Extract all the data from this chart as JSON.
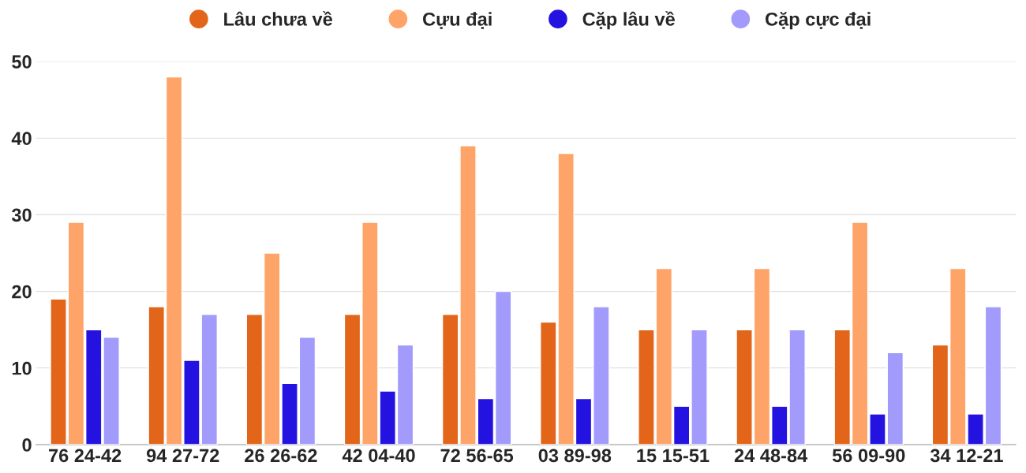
{
  "chart_data": {
    "type": "bar",
    "categories": [
      "76 24-42",
      "94 27-72",
      "26 26-62",
      "42 04-40",
      "72 56-65",
      "03 89-98",
      "15 15-51",
      "24 48-84",
      "56 09-90",
      "34 12-21"
    ],
    "series": [
      {
        "name": "Lâu chưa về",
        "color": "#e2651a",
        "values": [
          19,
          18,
          17,
          17,
          17,
          16,
          15,
          15,
          15,
          13
        ]
      },
      {
        "name": "Cựu đại",
        "color": "#ffa468",
        "values": [
          29,
          48,
          25,
          29,
          39,
          38,
          23,
          23,
          29,
          23
        ]
      },
      {
        "name": "Cặp lâu về",
        "color": "#2413e0",
        "values": [
          15,
          11,
          8,
          7,
          6,
          6,
          5,
          5,
          4,
          4
        ]
      },
      {
        "name": "Cặp cực đại",
        "color": "#a29bfc",
        "values": [
          14,
          17,
          14,
          13,
          20,
          18,
          15,
          15,
          12,
          18
        ]
      }
    ],
    "ylim": [
      0,
      50
    ],
    "yticks": [
      0,
      10,
      20,
      30,
      40,
      50
    ],
    "grid": "y",
    "legend": "top"
  }
}
